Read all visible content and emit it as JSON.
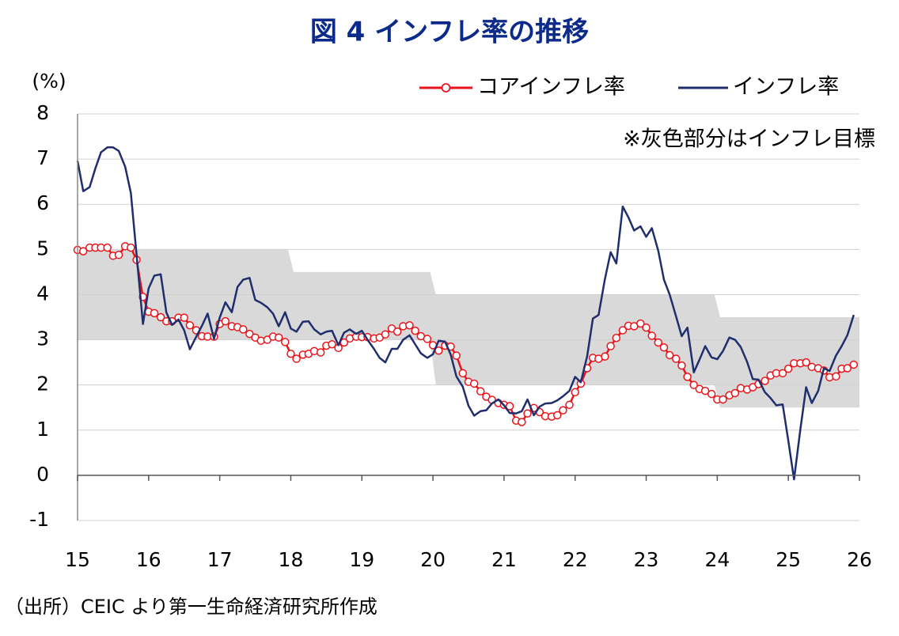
{
  "chart_data": {
    "type": "line",
    "title": "図 4  インフレ率の推移",
    "y_unit": "(%)",
    "annotation": "※灰色部分はインフレ目標",
    "source": "（出所）CEIC より第一生命経済研究所作成",
    "xlim": [
      15,
      26
    ],
    "xticks": [
      15,
      16,
      17,
      18,
      19,
      20,
      21,
      22,
      23,
      24,
      25,
      26
    ],
    "ylim": [
      -1,
      8
    ],
    "yticks": [
      -1,
      0,
      1,
      2,
      3,
      4,
      5,
      6,
      7,
      8
    ],
    "grid": true,
    "x": [
      15.0,
      15.08,
      15.17,
      15.25,
      15.33,
      15.42,
      15.5,
      15.58,
      15.67,
      15.75,
      15.83,
      15.92,
      16.0,
      16.08,
      16.17,
      16.25,
      16.33,
      16.42,
      16.5,
      16.58,
      16.67,
      16.75,
      16.83,
      16.92,
      17.0,
      17.08,
      17.17,
      17.25,
      17.33,
      17.42,
      17.5,
      17.58,
      17.67,
      17.75,
      17.83,
      17.92,
      18.0,
      18.08,
      18.17,
      18.25,
      18.33,
      18.42,
      18.5,
      18.58,
      18.67,
      18.75,
      18.83,
      18.92,
      19.0,
      19.08,
      19.17,
      19.25,
      19.33,
      19.42,
      19.5,
      19.58,
      19.67,
      19.75,
      19.83,
      19.92,
      20.0,
      20.08,
      20.17,
      20.25,
      20.33,
      20.42,
      20.5,
      20.58,
      20.67,
      20.75,
      20.83,
      20.92,
      21.0,
      21.08,
      21.17,
      21.25,
      21.33,
      21.42,
      21.5,
      21.58,
      21.67,
      21.75,
      21.83,
      21.92,
      22.0,
      22.08,
      22.17,
      22.25,
      22.33,
      22.42,
      22.5,
      22.58,
      22.67,
      22.75,
      22.83,
      22.92,
      23.0,
      23.08,
      23.17,
      23.25,
      23.33,
      23.42,
      23.5,
      23.58,
      23.67,
      23.75,
      23.83,
      23.92,
      24.0,
      24.08,
      24.17,
      24.25,
      24.33,
      24.42,
      24.5,
      24.58,
      24.67,
      24.75,
      24.83,
      24.92,
      25.0,
      25.08,
      25.17,
      25.25,
      25.33,
      25.42,
      25.5,
      25.58,
      25.67,
      25.75,
      25.83,
      25.92
    ],
    "series": [
      {
        "name": "コアインフレ率",
        "color": "#e8141b",
        "marker": "circle",
        "values": [
          4.99,
          4.96,
          5.04,
          5.04,
          5.04,
          5.04,
          4.86,
          4.88,
          5.07,
          5.04,
          4.77,
          3.95,
          3.62,
          3.59,
          3.5,
          3.41,
          3.41,
          3.49,
          3.49,
          3.32,
          3.21,
          3.08,
          3.07,
          3.07,
          3.35,
          3.41,
          3.3,
          3.28,
          3.23,
          3.13,
          3.05,
          2.98,
          3.0,
          3.07,
          3.05,
          2.95,
          2.69,
          2.58,
          2.67,
          2.69,
          2.75,
          2.72,
          2.87,
          2.9,
          2.82,
          2.94,
          3.03,
          3.07,
          3.06,
          3.06,
          3.03,
          3.05,
          3.12,
          3.25,
          3.18,
          3.3,
          3.32,
          3.2,
          3.08,
          3.02,
          2.88,
          2.76,
          2.87,
          2.85,
          2.65,
          2.26,
          2.07,
          2.03,
          1.86,
          1.74,
          1.67,
          1.6,
          1.56,
          1.53,
          1.21,
          1.18,
          1.37,
          1.49,
          1.4,
          1.31,
          1.3,
          1.33,
          1.44,
          1.56,
          1.84,
          2.03,
          2.37,
          2.6,
          2.58,
          2.63,
          2.86,
          3.04,
          3.21,
          3.31,
          3.3,
          3.36,
          3.27,
          3.09,
          2.94,
          2.83,
          2.66,
          2.58,
          2.43,
          2.18,
          2.0,
          1.91,
          1.87,
          1.8,
          1.68,
          1.68,
          1.77,
          1.82,
          1.93,
          1.9,
          1.95,
          2.02,
          2.09,
          2.21,
          2.26,
          2.26,
          2.36,
          2.48,
          2.48,
          2.5,
          2.4,
          2.37,
          2.32,
          2.17,
          2.19,
          2.36,
          2.37,
          2.45
        ]
      },
      {
        "name": "インフレ率",
        "color": "#1f2f6e",
        "values": [
          6.96,
          6.29,
          6.38,
          6.79,
          7.15,
          7.26,
          7.26,
          7.18,
          6.83,
          6.25,
          4.89,
          3.35,
          4.14,
          4.42,
          4.45,
          3.6,
          3.33,
          3.45,
          3.21,
          2.79,
          3.07,
          3.31,
          3.58,
          3.02,
          3.49,
          3.83,
          3.61,
          4.17,
          4.33,
          4.37,
          3.88,
          3.82,
          3.72,
          3.58,
          3.3,
          3.61,
          3.25,
          3.18,
          3.4,
          3.41,
          3.23,
          3.12,
          3.18,
          3.2,
          2.88,
          3.16,
          3.23,
          3.13,
          3.2,
          3.0,
          2.8,
          2.6,
          2.5,
          2.8,
          2.8,
          3.0,
          3.1,
          2.9,
          2.7,
          2.6,
          2.68,
          2.98,
          2.96,
          2.67,
          2.19,
          1.96,
          1.54,
          1.32,
          1.42,
          1.44,
          1.59,
          1.68,
          1.55,
          1.38,
          1.37,
          1.42,
          1.68,
          1.33,
          1.52,
          1.59,
          1.6,
          1.66,
          1.75,
          1.87,
          2.18,
          2.06,
          2.64,
          3.47,
          3.55,
          4.35,
          4.94,
          4.69,
          5.95,
          5.71,
          5.42,
          5.51,
          5.28,
          5.47,
          4.97,
          4.33,
          4.0,
          3.52,
          3.08,
          3.27,
          2.28,
          2.56,
          2.86,
          2.61,
          2.57,
          2.75,
          3.05,
          3.0,
          2.84,
          2.51,
          2.13,
          2.12,
          1.84,
          1.71,
          1.55,
          1.57,
          0.76,
          -0.09,
          1.03,
          1.95,
          1.6,
          1.87,
          2.37,
          2.31,
          2.65,
          2.86,
          3.1,
          3.55
        ]
      }
    ],
    "target_band": {
      "color": "#d9d9d9",
      "x": [
        15,
        17.96,
        18.04,
        19.96,
        20.04,
        23.96,
        24.04,
        26
      ],
      "upper": [
        5,
        5,
        4.5,
        4.5,
        4,
        4,
        3.5,
        3.5
      ],
      "lower": [
        3,
        3,
        3,
        3,
        2,
        2,
        1.5,
        1.5
      ]
    }
  }
}
